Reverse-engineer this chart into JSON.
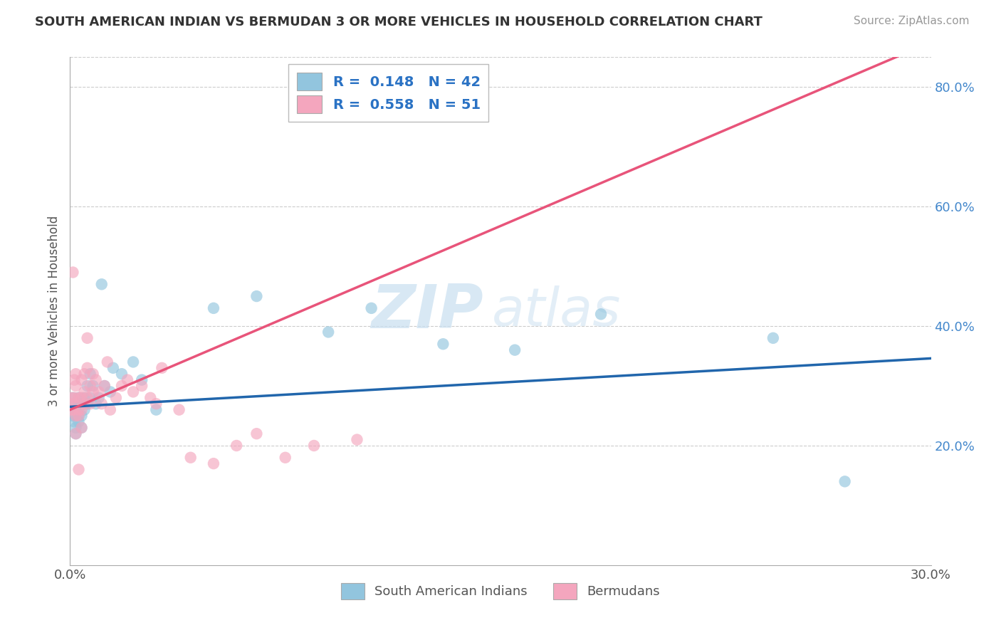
{
  "title": "SOUTH AMERICAN INDIAN VS BERMUDAN 3 OR MORE VEHICLES IN HOUSEHOLD CORRELATION CHART",
  "source": "Source: ZipAtlas.com",
  "ylabel": "3 or more Vehicles in Household",
  "xaxis_label_blue": "South American Indians",
  "xaxis_label_pink": "Bermudans",
  "r_blue": 0.148,
  "n_blue": 42,
  "r_pink": 0.558,
  "n_pink": 51,
  "xlim": [
    0.0,
    0.3
  ],
  "ylim": [
    0.0,
    0.85
  ],
  "color_blue": "#92c5de",
  "color_pink": "#f4a6be",
  "line_color_blue": "#2166ac",
  "line_color_pink": "#e8547a",
  "watermark_zip": "ZIP",
  "watermark_atlas": "atlas",
  "blue_x": [
    0.0005,
    0.001,
    0.001,
    0.0015,
    0.0015,
    0.002,
    0.002,
    0.002,
    0.002,
    0.003,
    0.003,
    0.003,
    0.003,
    0.004,
    0.004,
    0.004,
    0.005,
    0.005,
    0.006,
    0.006,
    0.007,
    0.007,
    0.008,
    0.009,
    0.01,
    0.011,
    0.012,
    0.014,
    0.015,
    0.018,
    0.022,
    0.025,
    0.03,
    0.05,
    0.065,
    0.09,
    0.105,
    0.13,
    0.155,
    0.185,
    0.245,
    0.27
  ],
  "blue_y": [
    0.27,
    0.28,
    0.25,
    0.26,
    0.24,
    0.23,
    0.26,
    0.25,
    0.22,
    0.28,
    0.25,
    0.27,
    0.24,
    0.27,
    0.25,
    0.23,
    0.28,
    0.26,
    0.3,
    0.27,
    0.32,
    0.28,
    0.3,
    0.27,
    0.28,
    0.47,
    0.3,
    0.29,
    0.33,
    0.32,
    0.34,
    0.31,
    0.26,
    0.43,
    0.45,
    0.39,
    0.43,
    0.37,
    0.36,
    0.42,
    0.38,
    0.14
  ],
  "pink_x": [
    0.0003,
    0.0005,
    0.001,
    0.001,
    0.001,
    0.0015,
    0.0015,
    0.002,
    0.002,
    0.002,
    0.002,
    0.003,
    0.003,
    0.003,
    0.003,
    0.004,
    0.004,
    0.004,
    0.004,
    0.005,
    0.005,
    0.005,
    0.006,
    0.006,
    0.006,
    0.007,
    0.007,
    0.008,
    0.008,
    0.009,
    0.01,
    0.011,
    0.012,
    0.013,
    0.014,
    0.016,
    0.018,
    0.02,
    0.022,
    0.025,
    0.028,
    0.03,
    0.032,
    0.038,
    0.042,
    0.05,
    0.058,
    0.065,
    0.075,
    0.085,
    0.1
  ],
  "pink_y": [
    0.26,
    0.28,
    0.49,
    0.27,
    0.26,
    0.31,
    0.28,
    0.32,
    0.3,
    0.25,
    0.22,
    0.28,
    0.26,
    0.25,
    0.16,
    0.31,
    0.28,
    0.26,
    0.23,
    0.32,
    0.29,
    0.27,
    0.33,
    0.38,
    0.28,
    0.3,
    0.27,
    0.32,
    0.29,
    0.31,
    0.29,
    0.27,
    0.3,
    0.34,
    0.26,
    0.28,
    0.3,
    0.31,
    0.29,
    0.3,
    0.28,
    0.27,
    0.33,
    0.26,
    0.18,
    0.17,
    0.2,
    0.22,
    0.18,
    0.2,
    0.21
  ]
}
